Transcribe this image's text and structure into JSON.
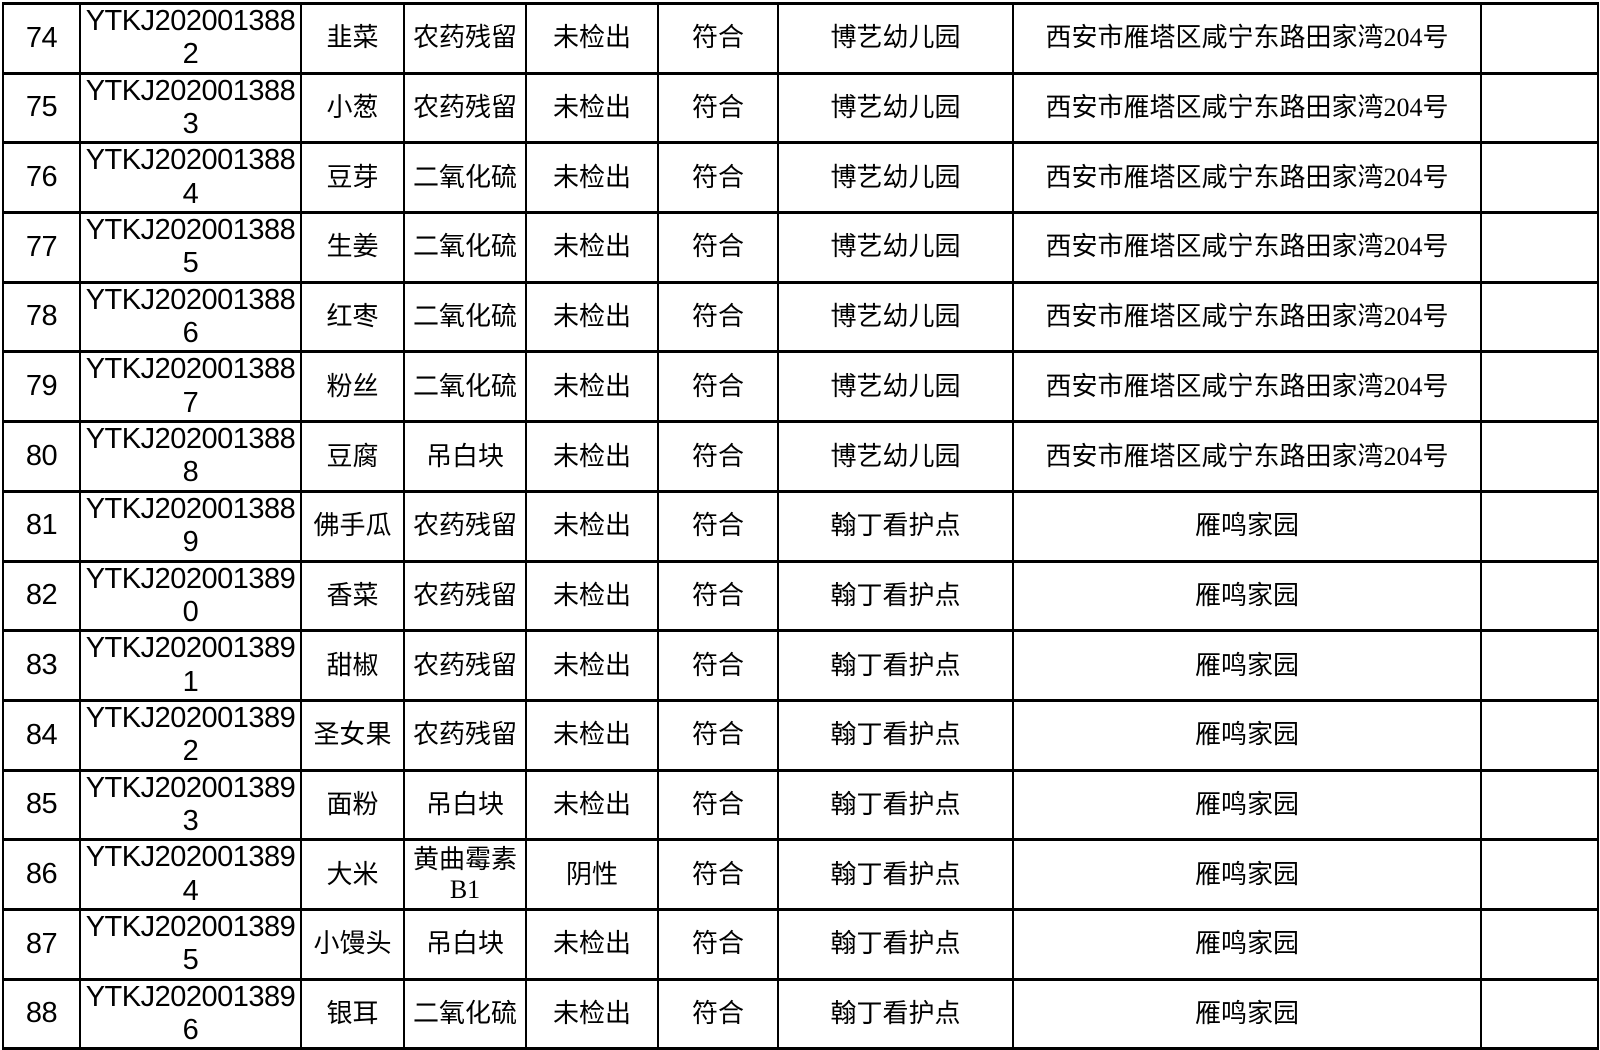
{
  "colors": {
    "border": "#000000",
    "background": "#ffffff",
    "text": "#000000"
  },
  "table": {
    "rows": [
      {
        "serial": "74",
        "sample_id": "YTKJ2020013882",
        "sample_name": "韭菜",
        "test_item": "农药残留",
        "test_result": "未检出",
        "conclusion": "符合",
        "unit": "博艺幼儿园",
        "address": "西安市雁塔区咸宁东路田家湾204号",
        "remark": ""
      },
      {
        "serial": "75",
        "sample_id": "YTKJ2020013883",
        "sample_name": "小葱",
        "test_item": "农药残留",
        "test_result": "未检出",
        "conclusion": "符合",
        "unit": "博艺幼儿园",
        "address": "西安市雁塔区咸宁东路田家湾204号",
        "remark": ""
      },
      {
        "serial": "76",
        "sample_id": "YTKJ2020013884",
        "sample_name": "豆芽",
        "test_item": "二氧化硫",
        "test_result": "未检出",
        "conclusion": "符合",
        "unit": "博艺幼儿园",
        "address": "西安市雁塔区咸宁东路田家湾204号",
        "remark": ""
      },
      {
        "serial": "77",
        "sample_id": "YTKJ2020013885",
        "sample_name": "生姜",
        "test_item": "二氧化硫",
        "test_result": "未检出",
        "conclusion": "符合",
        "unit": "博艺幼儿园",
        "address": "西安市雁塔区咸宁东路田家湾204号",
        "remark": ""
      },
      {
        "serial": "78",
        "sample_id": "YTKJ2020013886",
        "sample_name": "红枣",
        "test_item": "二氧化硫",
        "test_result": "未检出",
        "conclusion": "符合",
        "unit": "博艺幼儿园",
        "address": "西安市雁塔区咸宁东路田家湾204号",
        "remark": ""
      },
      {
        "serial": "79",
        "sample_id": "YTKJ2020013887",
        "sample_name": "粉丝",
        "test_item": "二氧化硫",
        "test_result": "未检出",
        "conclusion": "符合",
        "unit": "博艺幼儿园",
        "address": "西安市雁塔区咸宁东路田家湾204号",
        "remark": ""
      },
      {
        "serial": "80",
        "sample_id": "YTKJ2020013888",
        "sample_name": "豆腐",
        "test_item": "吊白块",
        "test_result": "未检出",
        "conclusion": "符合",
        "unit": "博艺幼儿园",
        "address": "西安市雁塔区咸宁东路田家湾204号",
        "remark": ""
      },
      {
        "serial": "81",
        "sample_id": "YTKJ2020013889",
        "sample_name": "佛手瓜",
        "test_item": "农药残留",
        "test_result": "未检出",
        "conclusion": "符合",
        "unit": "翰丁看护点",
        "address": "雁鸣家园",
        "remark": ""
      },
      {
        "serial": "82",
        "sample_id": "YTKJ2020013890",
        "sample_name": "香菜",
        "test_item": "农药残留",
        "test_result": "未检出",
        "conclusion": "符合",
        "unit": "翰丁看护点",
        "address": "雁鸣家园",
        "remark": ""
      },
      {
        "serial": "83",
        "sample_id": "YTKJ2020013891",
        "sample_name": "甜椒",
        "test_item": "农药残留",
        "test_result": "未检出",
        "conclusion": "符合",
        "unit": "翰丁看护点",
        "address": "雁鸣家园",
        "remark": ""
      },
      {
        "serial": "84",
        "sample_id": "YTKJ2020013892",
        "sample_name": "圣女果",
        "test_item": "农药残留",
        "test_result": "未检出",
        "conclusion": "符合",
        "unit": "翰丁看护点",
        "address": "雁鸣家园",
        "remark": ""
      },
      {
        "serial": "85",
        "sample_id": "YTKJ2020013893",
        "sample_name": "面粉",
        "test_item": "吊白块",
        "test_result": "未检出",
        "conclusion": "符合",
        "unit": "翰丁看护点",
        "address": "雁鸣家园",
        "remark": ""
      },
      {
        "serial": "86",
        "sample_id": "YTKJ2020013894",
        "sample_name": "大米",
        "test_item": "黄曲霉素B1",
        "test_result": "阴性",
        "conclusion": "符合",
        "unit": "翰丁看护点",
        "address": "雁鸣家园",
        "remark": ""
      },
      {
        "serial": "87",
        "sample_id": "YTKJ2020013895",
        "sample_name": "小馒头",
        "test_item": "吊白块",
        "test_result": "未检出",
        "conclusion": "符合",
        "unit": "翰丁看护点",
        "address": "雁鸣家园",
        "remark": ""
      },
      {
        "serial": "88",
        "sample_id": "YTKJ2020013896",
        "sample_name": "银耳",
        "test_item": "二氧化硫",
        "test_result": "未检出",
        "conclusion": "符合",
        "unit": "翰丁看护点",
        "address": "雁鸣家园",
        "remark": ""
      }
    ]
  }
}
